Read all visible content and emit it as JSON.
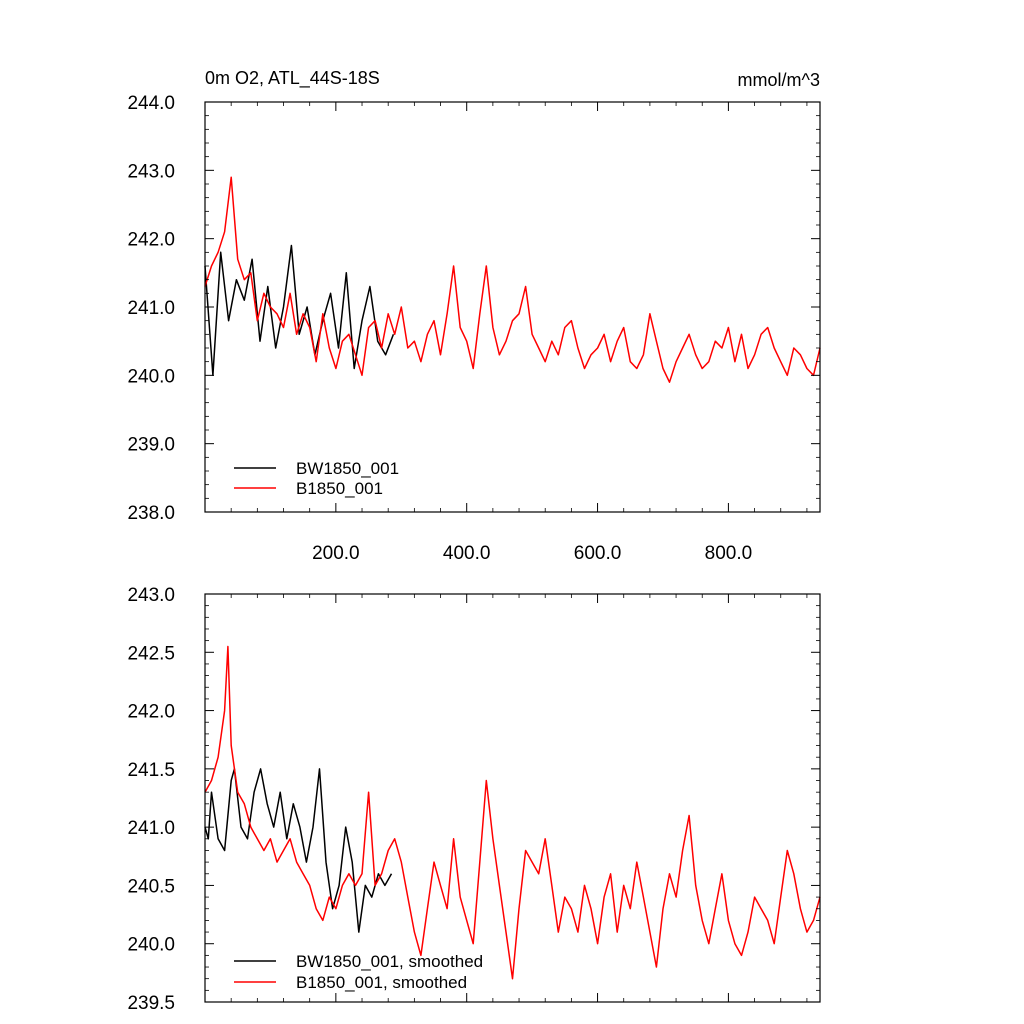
{
  "chart_data": [
    {
      "type": "line",
      "title": "0m O2, ATL_44S-18S",
      "units": "mmol/m^3",
      "xlim": [
        0,
        940
      ],
      "ylim": [
        238.0,
        244.0
      ],
      "x_ticks": [
        "200.0",
        "400.0",
        "600.0",
        "800.0"
      ],
      "y_ticks": [
        "238.0",
        "239.0",
        "240.0",
        "241.0",
        "242.0",
        "243.0",
        "244.0"
      ],
      "legend_position": "bottom-left",
      "grid": false,
      "series": [
        {
          "name": "BW1850_001",
          "color": "#000000",
          "x": [
            0,
            12,
            24,
            36,
            48,
            60,
            72,
            84,
            96,
            108,
            120,
            132,
            144,
            156,
            168,
            180,
            192,
            204,
            216,
            228,
            240,
            252,
            264,
            276,
            288
          ],
          "values": [
            241.6,
            240.0,
            241.8,
            240.8,
            241.4,
            241.1,
            241.7,
            240.5,
            241.3,
            240.4,
            241.0,
            241.9,
            240.6,
            241.0,
            240.3,
            240.8,
            241.2,
            240.4,
            241.5,
            240.1,
            240.8,
            241.3,
            240.5,
            240.3,
            240.6
          ]
        },
        {
          "name": "B1850_001",
          "color": "#ff0000",
          "x": [
            0,
            10,
            20,
            30,
            40,
            50,
            60,
            70,
            80,
            90,
            100,
            110,
            120,
            130,
            140,
            150,
            160,
            170,
            180,
            190,
            200,
            210,
            220,
            230,
            240,
            250,
            260,
            270,
            280,
            290,
            300,
            310,
            320,
            330,
            340,
            350,
            360,
            370,
            380,
            390,
            400,
            410,
            420,
            430,
            440,
            450,
            460,
            470,
            480,
            490,
            500,
            510,
            520,
            530,
            540,
            550,
            560,
            570,
            580,
            590,
            600,
            610,
            620,
            630,
            640,
            650,
            660,
            670,
            680,
            690,
            700,
            710,
            720,
            730,
            740,
            750,
            760,
            770,
            780,
            790,
            800,
            810,
            820,
            830,
            840,
            850,
            860,
            870,
            880,
            890,
            900,
            910,
            920,
            930,
            940
          ],
          "values": [
            241.3,
            241.6,
            241.8,
            242.1,
            242.9,
            241.7,
            241.4,
            241.5,
            240.8,
            241.2,
            241.0,
            240.9,
            240.7,
            241.2,
            240.6,
            240.9,
            240.7,
            240.2,
            240.9,
            240.4,
            240.1,
            240.5,
            240.6,
            240.3,
            240.0,
            240.7,
            240.8,
            240.4,
            240.9,
            240.6,
            241.0,
            240.4,
            240.5,
            240.2,
            240.6,
            240.8,
            240.3,
            240.9,
            241.6,
            240.7,
            240.5,
            240.1,
            240.9,
            241.6,
            240.7,
            240.3,
            240.5,
            240.8,
            240.9,
            241.3,
            240.6,
            240.4,
            240.2,
            240.5,
            240.3,
            240.7,
            240.8,
            240.4,
            240.1,
            240.3,
            240.4,
            240.6,
            240.2,
            240.5,
            240.7,
            240.2,
            240.1,
            240.3,
            240.9,
            240.5,
            240.1,
            239.9,
            240.2,
            240.4,
            240.6,
            240.3,
            240.1,
            240.2,
            240.5,
            240.4,
            240.7,
            240.2,
            240.6,
            240.1,
            240.3,
            240.6,
            240.7,
            240.4,
            240.2,
            240.0,
            240.4,
            240.3,
            240.1,
            240.0,
            240.4
          ]
        }
      ]
    },
    {
      "type": "line",
      "xlim": [
        0,
        940
      ],
      "ylim": [
        239.5,
        243.0
      ],
      "y_ticks": [
        "239.5",
        "240.0",
        "240.5",
        "241.0",
        "241.5",
        "242.0",
        "242.5",
        "243.0"
      ],
      "legend_position": "bottom-left",
      "grid": false,
      "series": [
        {
          "name": "BW1850_001, smoothed",
          "color": "#000000",
          "x": [
            0,
            5,
            10,
            20,
            30,
            40,
            45,
            55,
            65,
            75,
            85,
            95,
            105,
            115,
            125,
            135,
            145,
            155,
            165,
            175,
            185,
            195,
            205,
            215,
            225,
            235,
            245,
            255,
            265,
            275,
            285
          ],
          "values": [
            241.0,
            240.9,
            241.3,
            240.9,
            240.8,
            241.4,
            241.5,
            241.0,
            240.9,
            241.3,
            241.5,
            241.2,
            241.0,
            241.3,
            240.9,
            241.2,
            241.0,
            240.7,
            241.0,
            241.5,
            240.7,
            240.3,
            240.5,
            241.0,
            240.7,
            240.1,
            240.5,
            240.4,
            240.6,
            240.5,
            240.6
          ]
        },
        {
          "name": "B1850_001, smoothed",
          "color": "#ff0000",
          "x": [
            0,
            10,
            20,
            30,
            35,
            40,
            50,
            60,
            70,
            80,
            90,
            100,
            110,
            120,
            130,
            140,
            150,
            160,
            170,
            180,
            190,
            200,
            210,
            220,
            230,
            240,
            250,
            260,
            270,
            280,
            290,
            300,
            310,
            320,
            330,
            340,
            350,
            360,
            370,
            380,
            390,
            400,
            410,
            420,
            430,
            440,
            450,
            460,
            470,
            480,
            490,
            500,
            510,
            520,
            530,
            540,
            550,
            560,
            570,
            580,
            590,
            600,
            610,
            620,
            630,
            640,
            650,
            660,
            670,
            680,
            690,
            700,
            710,
            720,
            730,
            740,
            750,
            760,
            770,
            780,
            790,
            800,
            810,
            820,
            830,
            840,
            850,
            860,
            870,
            880,
            890,
            900,
            910,
            920,
            930,
            940
          ],
          "values": [
            241.3,
            241.4,
            241.6,
            242.0,
            242.55,
            241.7,
            241.3,
            241.2,
            241.0,
            240.9,
            240.8,
            240.9,
            240.7,
            240.8,
            240.9,
            240.7,
            240.6,
            240.5,
            240.3,
            240.2,
            240.4,
            240.3,
            240.5,
            240.6,
            240.5,
            240.6,
            241.3,
            240.5,
            240.6,
            240.8,
            240.9,
            240.7,
            240.4,
            240.1,
            239.9,
            240.3,
            240.7,
            240.5,
            240.3,
            240.9,
            240.4,
            240.2,
            240.0,
            240.7,
            241.4,
            240.9,
            240.5,
            240.1,
            239.7,
            240.3,
            240.8,
            240.7,
            240.6,
            240.9,
            240.5,
            240.1,
            240.4,
            240.3,
            240.1,
            240.5,
            240.3,
            240.0,
            240.4,
            240.6,
            240.1,
            240.5,
            240.3,
            240.7,
            240.4,
            240.1,
            239.8,
            240.3,
            240.6,
            240.4,
            240.8,
            241.1,
            240.5,
            240.2,
            240.0,
            240.3,
            240.6,
            240.2,
            240.0,
            239.9,
            240.1,
            240.4,
            240.3,
            240.2,
            240.0,
            240.4,
            240.8,
            240.6,
            240.3,
            240.1,
            240.2,
            240.4
          ]
        }
      ]
    }
  ]
}
